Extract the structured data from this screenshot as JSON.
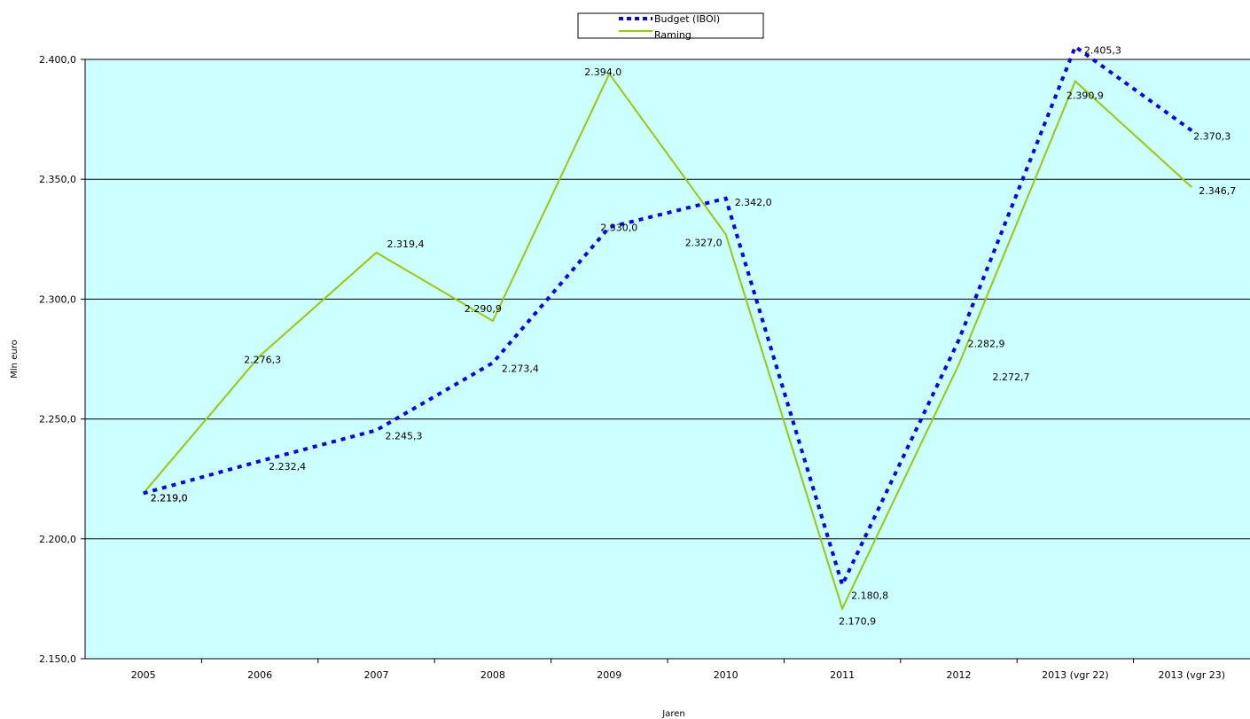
{
  "chart_data": {
    "type": "line",
    "title": "",
    "xlabel": "Jaren",
    "ylabel": "Mln euro",
    "categories": [
      "2005",
      "2006",
      "2007",
      "2008",
      "2009",
      "2010",
      "2011",
      "2012",
      "2013 (vgr 22)",
      "2013 (vgr 23)"
    ],
    "ylim": [
      2150,
      2400
    ],
    "yticks": [
      "2.150,0",
      "2.200,0",
      "2.250,0",
      "2.300,0",
      "2.350,0",
      "2.400,0"
    ],
    "grid": "horizontal",
    "legend_position": "top-center",
    "plot_background": "#ccffff",
    "series": [
      {
        "name": "Budget (IBOI)",
        "color": "#0000ff",
        "style": "dotted",
        "values": [
          2219.0,
          2232.4,
          2245.3,
          2273.4,
          2330.0,
          2342.0,
          2180.8,
          2282.9,
          2405.3,
          2370.3
        ],
        "labels": [
          "2.219,0",
          "2.232,4",
          "2.245,3",
          "2.273,4",
          "2.330,0",
          "2.342,0",
          "2.180,8",
          "2.282,9",
          "2.405,3",
          "2.370,3"
        ]
      },
      {
        "name": "Raming",
        "color": "#99cc00",
        "style": "solid",
        "values": [
          2219.0,
          2276.3,
          2319.4,
          2290.9,
          2394.0,
          2327.0,
          2170.9,
          2272.7,
          2390.9,
          2346.7
        ],
        "labels": [
          "2.219,0",
          "2.276,3",
          "2.319,4",
          "2.290,9",
          "2.394,0",
          "2.327,0",
          "2.170,9",
          "2.272,7",
          "2.390,9",
          "2.346,7"
        ]
      }
    ]
  }
}
